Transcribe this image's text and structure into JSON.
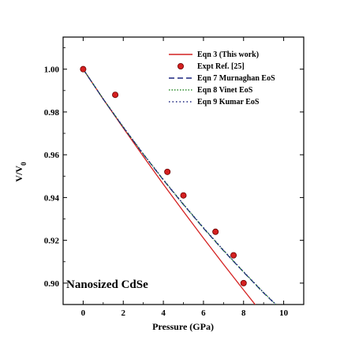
{
  "chart_data": {
    "type": "line",
    "title": "",
    "xlabel": "Pressure (GPa)",
    "ylabel": "V/V",
    "ylabel_subscript": "0",
    "xlim": [
      -1,
      11
    ],
    "ylim": [
      0.89,
      1.015
    ],
    "x_ticks": [
      0,
      2,
      4,
      6,
      8,
      10
    ],
    "y_ticks": [
      0.9,
      0.92,
      0.94,
      0.96,
      0.98,
      1.0
    ],
    "y_tick_labels": [
      "0.90",
      "0.92",
      "0.94",
      "0.96",
      "0.98",
      "1.00"
    ],
    "grid": false,
    "legend_position": "top-right",
    "annotation": "Nanosized CdSe",
    "series": [
      {
        "name": "Eqn 3 (This work)",
        "style": "solid",
        "color": "#d42020",
        "x": [
          0,
          1,
          2,
          3,
          4,
          5,
          6,
          7,
          8,
          9.2
        ],
        "y": [
          1.0,
          0.986,
          0.9725,
          0.9592,
          0.9462,
          0.9335,
          0.921,
          0.9088,
          0.8968,
          0.8826
        ]
      },
      {
        "name": "Expt  Ref. [25]",
        "style": "marker",
        "color": "#d42020",
        "x": [
          0,
          1.6,
          4.2,
          5.0,
          6.6,
          7.5,
          8.0
        ],
        "y": [
          1.0,
          0.988,
          0.952,
          0.941,
          0.924,
          0.913,
          0.9
        ]
      },
      {
        "name": "Eqn 7 Murnaghan EoS",
        "style": "dash",
        "color": "#1a237e",
        "x": [
          0,
          1,
          2,
          3,
          4,
          5,
          6,
          7,
          8,
          9,
          9.6
        ],
        "y": [
          1.0,
          0.986,
          0.9728,
          0.9602,
          0.9482,
          0.9367,
          0.9257,
          0.9152,
          0.9051,
          0.8954,
          0.89
        ]
      },
      {
        "name": "Eqn 8 Vinet EoS",
        "style": "dot",
        "color": "#2e8b2e",
        "x": [
          0,
          1,
          2,
          3,
          4,
          5,
          6,
          7,
          8,
          9,
          9.6
        ],
        "y": [
          1.0,
          0.9861,
          0.9729,
          0.9603,
          0.9483,
          0.9368,
          0.9258,
          0.9153,
          0.9052,
          0.8955,
          0.8901
        ]
      },
      {
        "name": "Eqn 9 Kumar EoS",
        "style": "dashdot",
        "color": "#1a237e",
        "x": [
          0,
          1,
          2,
          3,
          4,
          5,
          6,
          7,
          8,
          9,
          9.6
        ],
        "y": [
          1.0,
          0.9861,
          0.973,
          0.9604,
          0.9484,
          0.9369,
          0.9259,
          0.9154,
          0.9053,
          0.8956,
          0.8902
        ]
      }
    ]
  }
}
